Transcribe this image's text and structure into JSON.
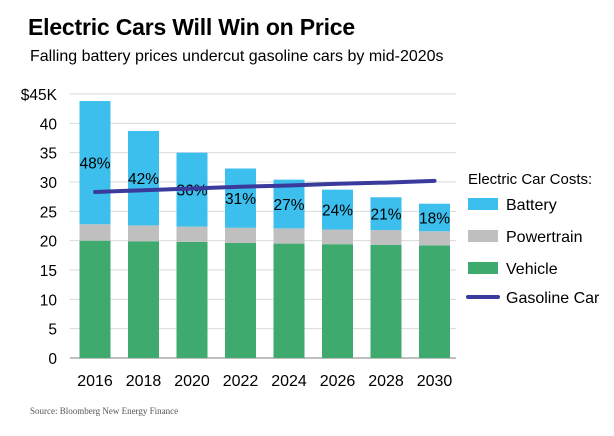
{
  "title": "Electric Cars Will Win on Price",
  "subtitle": "Falling battery prices undercut gasoline cars by mid-2020s",
  "source": "Source: Bloomberg New Energy Finance",
  "colors": {
    "battery": "#3DBFEE",
    "powertrain": "#BFBFBF",
    "vehicle": "#3EAA6E",
    "gasoline": "#3A3A9C",
    "grid": "#D9D9D9"
  },
  "chart_data": {
    "type": "bar",
    "stacked": true,
    "categories": [
      "2016",
      "2018",
      "2020",
      "2022",
      "2024",
      "2026",
      "2028",
      "2030"
    ],
    "series": [
      {
        "name": "Vehicle",
        "values": [
          20,
          19.9,
          19.8,
          19.6,
          19.5,
          19.4,
          19.3,
          19.2
        ]
      },
      {
        "name": "Powertrain",
        "values": [
          2.8,
          2.7,
          2.6,
          2.6,
          2.6,
          2.5,
          2.5,
          2.4
        ]
      },
      {
        "name": "Battery",
        "values": [
          21,
          16.1,
          12.6,
          10.1,
          8.3,
          6.8,
          5.6,
          4.7
        ]
      }
    ],
    "battery_share_labels": [
      "48%",
      "42%",
      "36%",
      "31%",
      "27%",
      "24%",
      "21%",
      "18%"
    ],
    "line_series": {
      "name": "Gasoline Car",
      "values": [
        28.3,
        28.6,
        28.9,
        29.2,
        29.4,
        29.7,
        29.9,
        30.2
      ]
    },
    "ylim": [
      0,
      45
    ],
    "yticks": [
      0,
      5,
      10,
      15,
      20,
      25,
      30,
      35,
      40,
      45
    ],
    "ytick_labels": [
      "0",
      "5",
      "10",
      "15",
      "20",
      "25",
      "30",
      "35",
      "40",
      "$45K"
    ],
    "legend_title": "Electric Car Costs:",
    "legend_position": "right",
    "grid": true
  }
}
